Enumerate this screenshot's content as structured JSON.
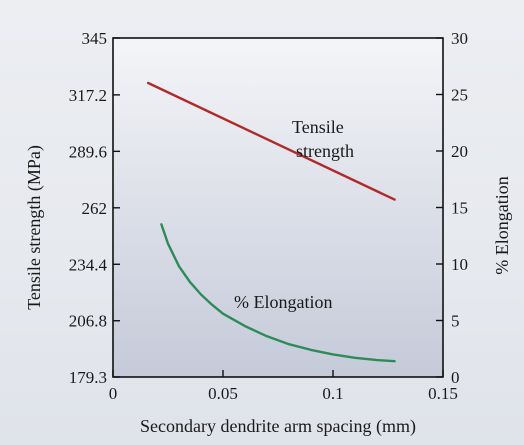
{
  "chart_data": {
    "type": "line",
    "xlabel": "Secondary dendrite arm spacing (mm)",
    "ylabel_left": "Tensile strength (MPa)",
    "ylabel_right": "% Elongation",
    "xlim": [
      0,
      0.15
    ],
    "ylim_left": [
      179.3,
      345
    ],
    "ylim_right": [
      0,
      30
    ],
    "x_ticks": [
      "0",
      "0.05",
      "0.1",
      "0.15"
    ],
    "y_ticks_left": [
      "179.3",
      "206.8",
      "234.4",
      "262",
      "289.6",
      "317.2",
      "345"
    ],
    "y_ticks_right": [
      "0",
      "5",
      "10",
      "15",
      "20",
      "25",
      "30"
    ],
    "series": [
      {
        "name": "Tensile strength",
        "axis": "left",
        "color": "#b02a2a",
        "x": [
          0.016,
          0.128
        ],
        "y": [
          323,
          266
        ]
      },
      {
        "name": "% Elongation",
        "axis": "right",
        "color": "#2e8b57",
        "x": [
          0.022,
          0.025,
          0.03,
          0.035,
          0.04,
          0.045,
          0.05,
          0.06,
          0.07,
          0.08,
          0.09,
          0.1,
          0.11,
          0.12,
          0.128
        ],
        "y": [
          13.5,
          11.8,
          9.8,
          8.4,
          7.3,
          6.4,
          5.6,
          4.5,
          3.6,
          2.9,
          2.4,
          2.0,
          1.7,
          1.5,
          1.4
        ]
      }
    ],
    "annotations": [
      "Tensile strength",
      "% Elongation"
    ],
    "grid": false,
    "legend": "none"
  }
}
